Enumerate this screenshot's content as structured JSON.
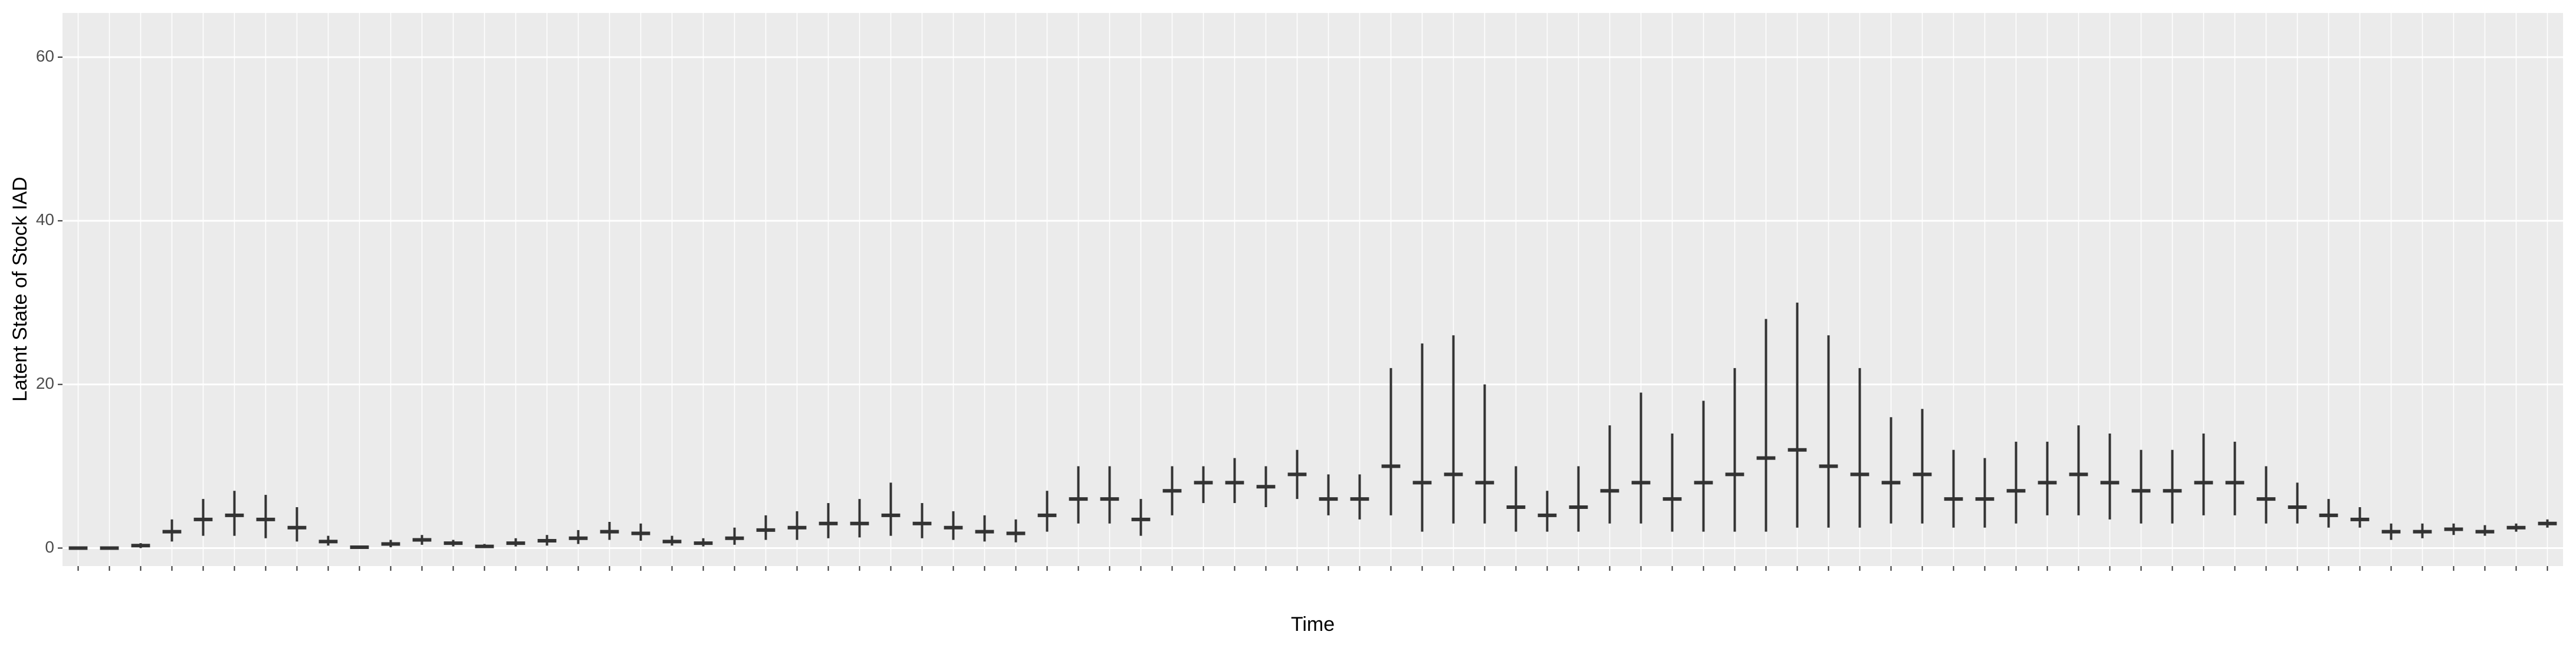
{
  "chart_data": {
    "type": "range-box",
    "x_label": "Time",
    "y_label": "Latent State of Stock IAD",
    "categories": [
      null,
      null,
      null,
      null,
      null,
      null,
      null,
      null,
      null,
      null,
      null,
      null,
      null,
      null,
      null,
      null,
      null,
      null,
      null,
      null,
      null,
      null,
      null,
      null,
      null,
      null,
      null,
      null,
      null,
      null,
      null,
      null,
      null,
      null,
      null,
      null,
      null,
      null,
      null,
      null,
      null,
      null,
      null,
      null,
      null,
      null,
      null,
      null,
      null,
      null,
      null,
      null,
      null,
      null,
      null,
      null,
      null,
      null,
      null,
      null,
      null,
      null,
      null,
      null,
      null,
      null,
      null,
      null,
      null,
      null,
      null,
      null,
      null,
      null,
      null,
      null,
      null,
      null,
      null,
      null
    ],
    "lower": [
      0,
      0,
      0,
      0.8,
      1.5,
      1.5,
      1.2,
      0.8,
      0.3,
      0,
      0.1,
      0.4,
      0.2,
      0,
      0.2,
      0.3,
      0.5,
      1,
      0.9,
      0.3,
      0.2,
      0.4,
      1,
      1,
      1.2,
      1.3,
      1.5,
      1.2,
      1,
      0.8,
      0.7,
      2,
      3,
      3,
      1.5,
      4,
      5.5,
      5.5,
      5,
      6,
      4,
      3.5,
      4,
      2,
      3,
      3,
      2,
      2,
      2,
      3,
      3,
      2,
      2,
      2,
      2,
      2.5,
      2.5,
      2.5,
      3,
      3,
      2.5,
      2.5,
      3,
      4,
      4,
      3.5,
      3,
      3,
      4,
      4,
      3,
      3,
      2.5,
      2.5,
      1,
      1.2,
      1.6,
      1.5,
      2,
      2.5
    ],
    "median": [
      0,
      0,
      0.3,
      2,
      3.5,
      4,
      3.5,
      2.5,
      0.8,
      0.1,
      0.5,
      1,
      0.6,
      0.2,
      0.6,
      0.9,
      1.2,
      2,
      1.8,
      0.8,
      0.6,
      1.2,
      2.2,
      2.5,
      3,
      3,
      4,
      3,
      2.5,
      2,
      1.8,
      4,
      6,
      6,
      3.5,
      7,
      8,
      8,
      7.5,
      9,
      6,
      6,
      10,
      8,
      9,
      8,
      5,
      4,
      5,
      7,
      8,
      6,
      8,
      9,
      11,
      12,
      10,
      9,
      8,
      9,
      6,
      6,
      7,
      8,
      9,
      8,
      7,
      7,
      8,
      8,
      6,
      5,
      4,
      3.5,
      2,
      2,
      2.3,
      2,
      2.5,
      3
    ],
    "upper": [
      0,
      0,
      0.6,
      3.5,
      6,
      7,
      6.5,
      5,
      1.5,
      0.3,
      1,
      1.6,
      1,
      0.5,
      1.2,
      1.6,
      2.2,
      3.2,
      3,
      1.5,
      1.2,
      2.5,
      4,
      4.5,
      5.5,
      6,
      8,
      5.5,
      4.5,
      4,
      3.5,
      7,
      10,
      10,
      6,
      10,
      10,
      11,
      10,
      12,
      9,
      9,
      22,
      25,
      26,
      20,
      10,
      7,
      10,
      15,
      19,
      14,
      18,
      22,
      28,
      30,
      26,
      22,
      16,
      17,
      12,
      11,
      13,
      13,
      15,
      14,
      12,
      12,
      14,
      13,
      10,
      8,
      6,
      5,
      3,
      3,
      3,
      2.8,
      3,
      3.5
    ],
    "color": "#333333",
    "ylim": [
      -2.2,
      65.4
    ],
    "yticks": [
      0,
      20,
      40,
      60
    ],
    "grid": true
  }
}
